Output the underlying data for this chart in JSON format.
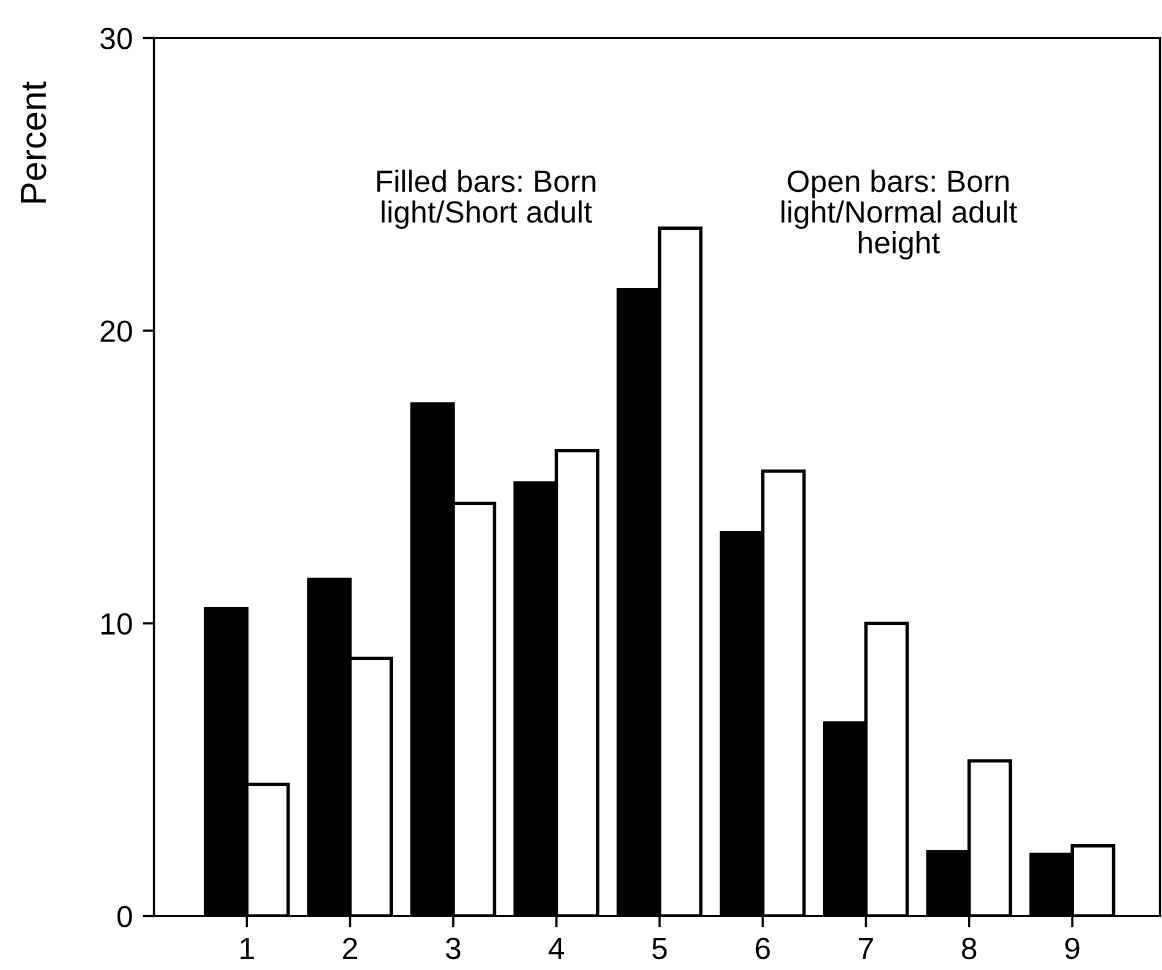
{
  "chart_data": {
    "type": "bar",
    "ylabel": "Percent",
    "categories": [
      "1",
      "2",
      "3",
      "4",
      "5",
      "6",
      "7",
      "8",
      "9"
    ],
    "series": [
      {
        "color": "#000000",
        "values": [
          10.5,
          11.5,
          17.5,
          14.8,
          21.4,
          13.1,
          6.6,
          2.2,
          2.1
        ]
      },
      {
        "color": "#ffffff",
        "values": [
          4.5,
          8.8,
          14.1,
          15.9,
          23.5,
          15.2,
          10.0,
          5.3,
          2.4
        ]
      }
    ],
    "ylim": [
      0,
      30
    ],
    "yticks": [
      0,
      10,
      20,
      30
    ],
    "grid": false,
    "legend": false,
    "annotations": [
      "Filled bars: Born\nlight/Short adult",
      "Open bars: Born\nlight/Normal adult\nheight"
    ]
  }
}
